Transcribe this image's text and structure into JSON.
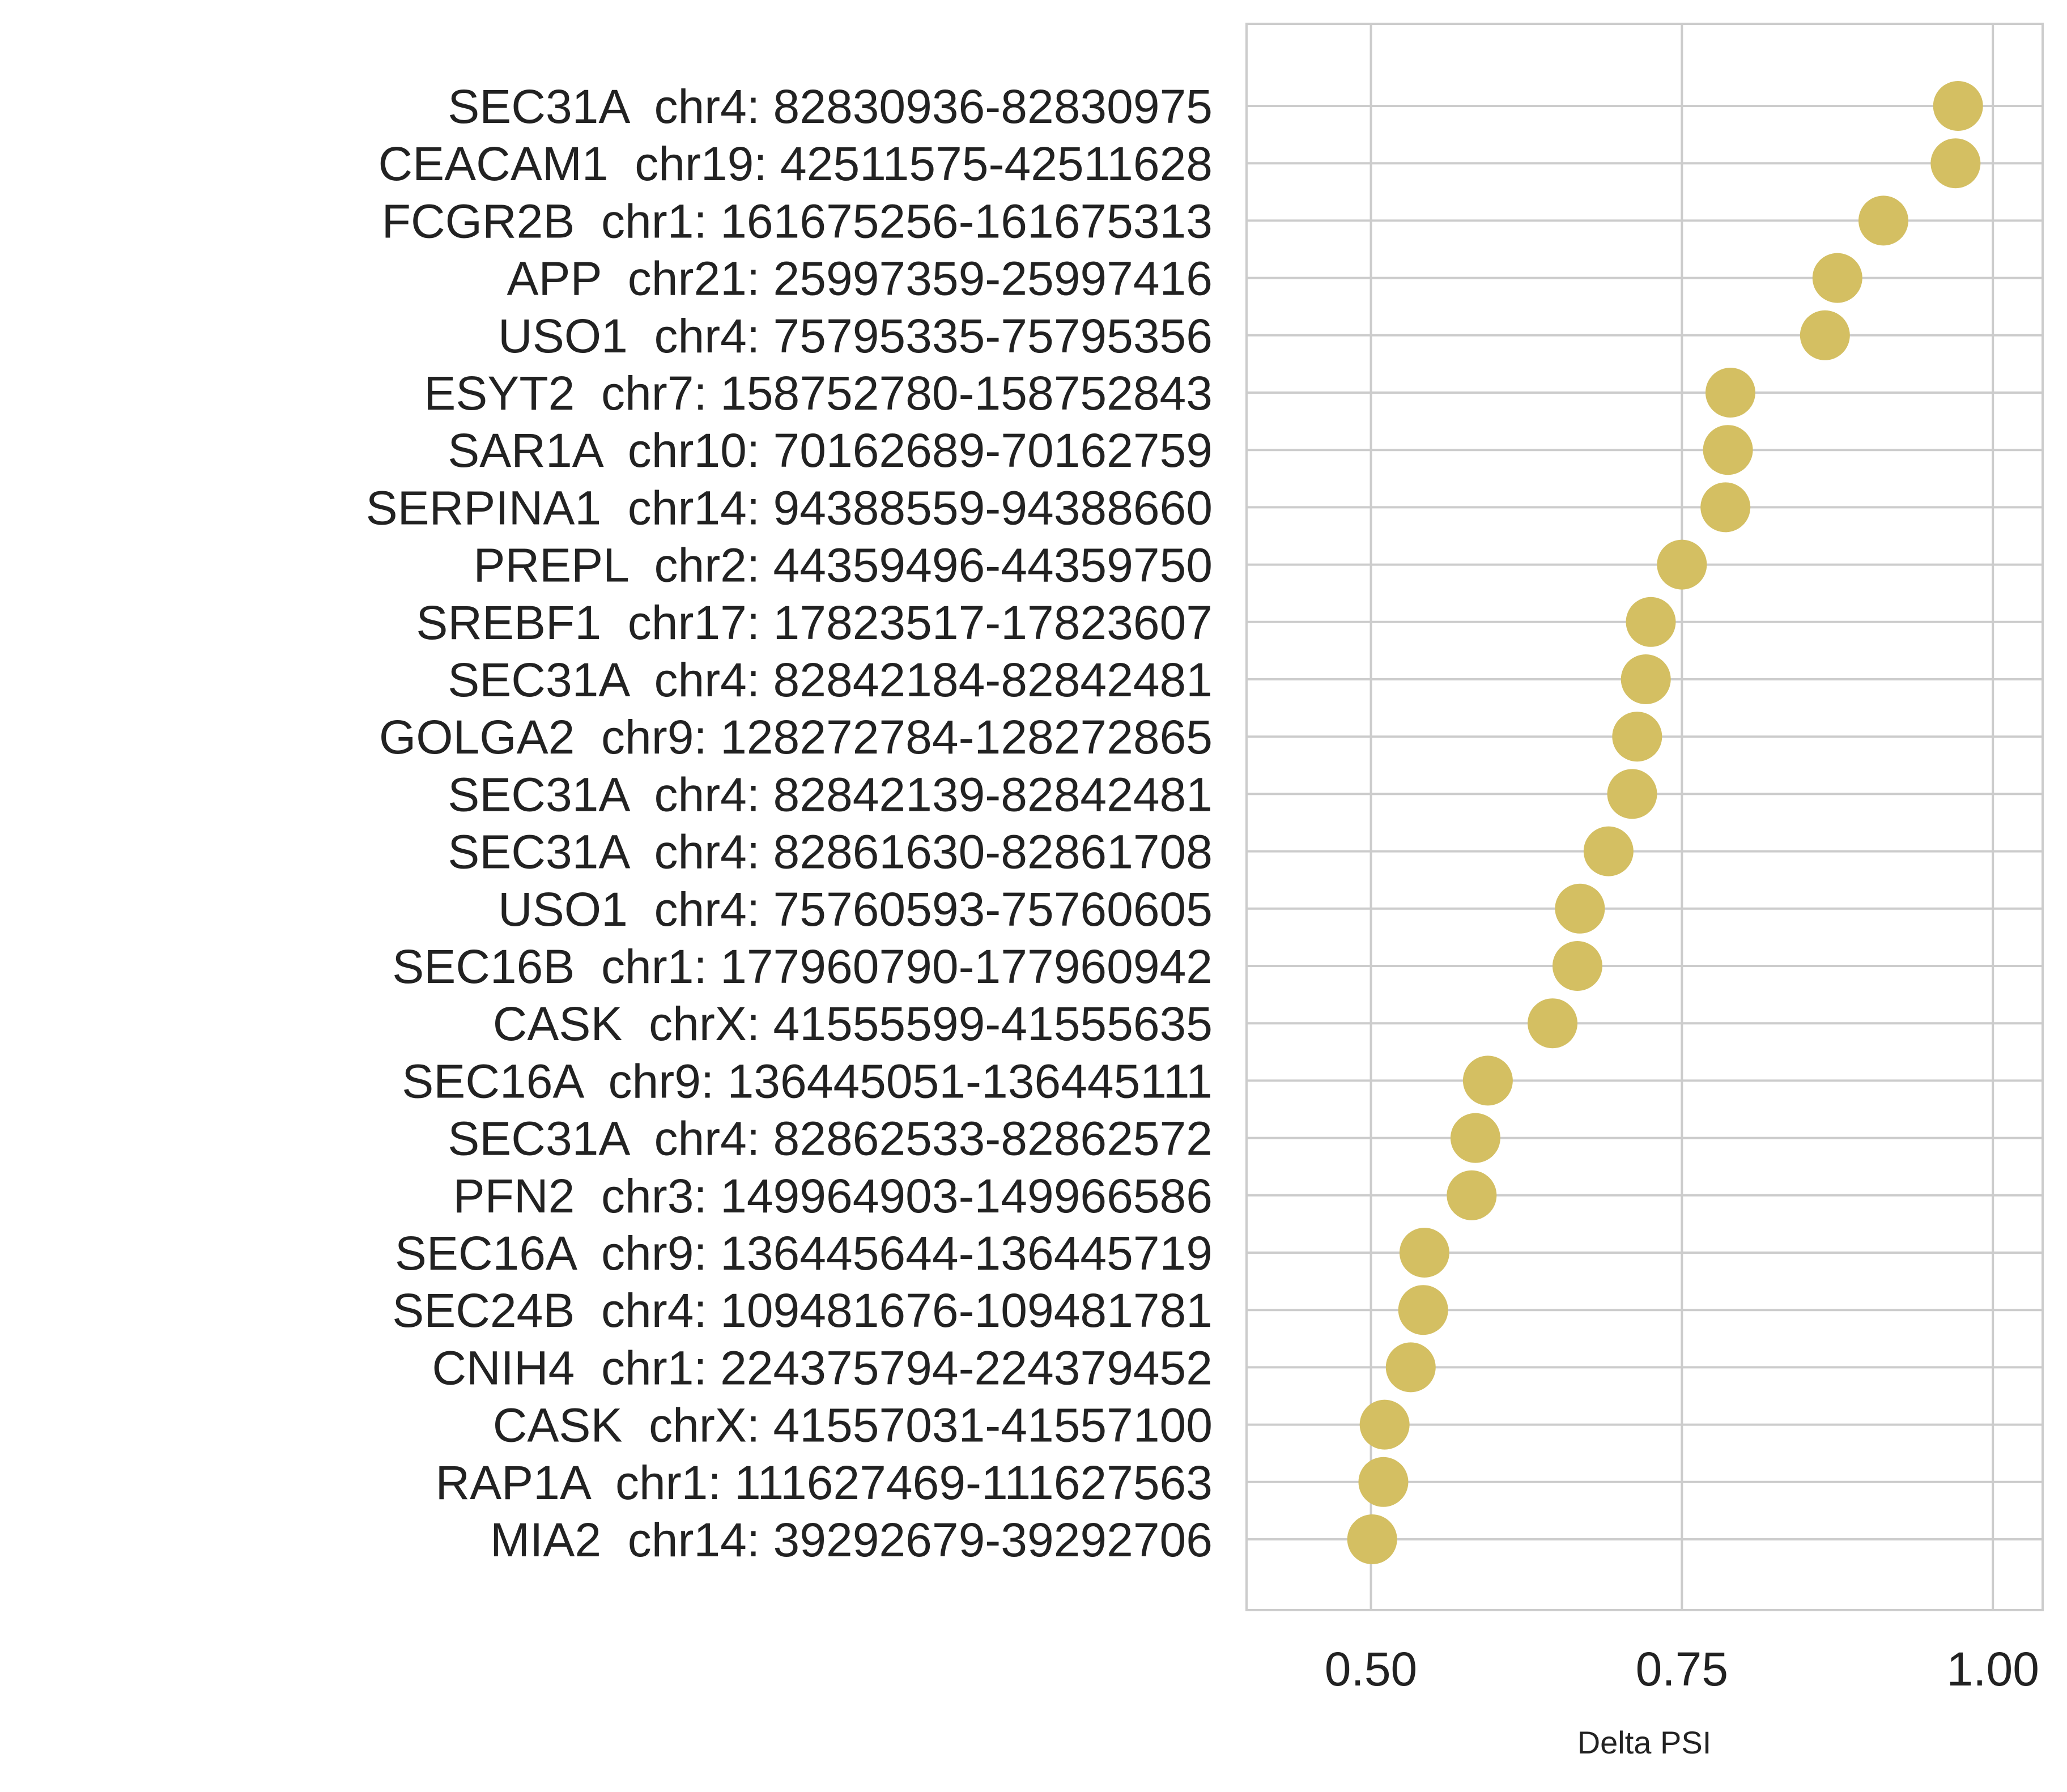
{
  "chart_data": {
    "type": "scatter",
    "xlabel": "Delta PSI",
    "ylabel": "",
    "title": "",
    "xlim": [
      0.4,
      1.04
    ],
    "xticks": [
      0.5,
      0.75,
      1.0
    ],
    "xtick_labels": [
      "0.50",
      "0.75",
      "1.00"
    ],
    "grid": true,
    "colors": {
      "marker": "#d4bf62",
      "grid": "#cccccc",
      "text": "#222222"
    },
    "categories": [
      "SEC31A  chr4: 82830936-82830975",
      "CEACAM1  chr19: 42511575-42511628",
      "FCGR2B  chr1: 161675256-161675313",
      "APP  chr21: 25997359-25997416",
      "USO1  chr4: 75795335-75795356",
      "ESYT2  chr7: 158752780-158752843",
      "SAR1A  chr10: 70162689-70162759",
      "SERPINA1  chr14: 94388559-94388660",
      "PREPL  chr2: 44359496-44359750",
      "SREBF1  chr17: 17823517-17823607",
      "SEC31A  chr4: 82842184-82842481",
      "GOLGA2  chr9: 128272784-128272865",
      "SEC31A  chr4: 82842139-82842481",
      "SEC31A  chr4: 82861630-82861708",
      "USO1  chr4: 75760593-75760605",
      "SEC16B  chr1: 177960790-177960942",
      "CASK  chrX: 41555599-41555635",
      "SEC16A  chr9: 136445051-136445111",
      "SEC31A  chr4: 82862533-82862572",
      "PFN2  chr3: 149964903-149966586",
      "SEC16A  chr9: 136445644-136445719",
      "SEC24B  chr4: 109481676-109481781",
      "CNIH4  chr1: 224375794-224379452",
      "CASK  chrX: 41557031-41557100",
      "RAP1A  chr1: 111627469-111627563",
      "MIA2  chr14: 39292679-39292706"
    ],
    "values": [
      0.972,
      0.97,
      0.912,
      0.875,
      0.865,
      0.789,
      0.787,
      0.785,
      0.75,
      0.725,
      0.721,
      0.714,
      0.71,
      0.691,
      0.668,
      0.666,
      0.646,
      0.594,
      0.584,
      0.581,
      0.543,
      0.542,
      0.532,
      0.511,
      0.51,
      0.501
    ]
  }
}
